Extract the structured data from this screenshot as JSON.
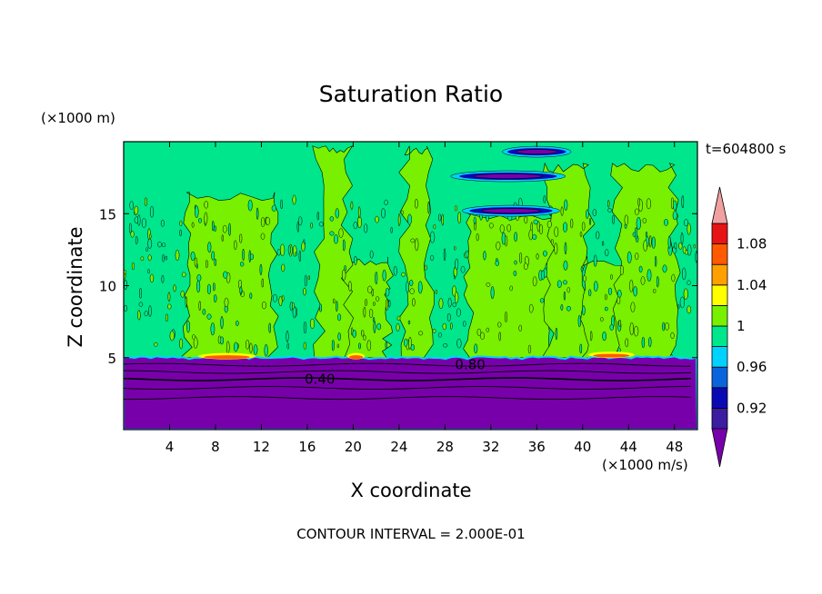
{
  "chart_data": {
    "type": "heatmap",
    "title": "Saturation Ratio",
    "xlabel": "X coordinate",
    "ylabel": "Z coordinate",
    "x_unit": "(×1000 m/s)",
    "y_unit": "(×1000 m)",
    "time_label": "t=604800 s",
    "footer": "CONTOUR INTERVAL = 2.000E-01",
    "xlim": [
      0,
      50
    ],
    "ylim": [
      0,
      20
    ],
    "xticks": [
      4,
      8,
      12,
      16,
      20,
      24,
      28,
      32,
      36,
      40,
      44,
      48
    ],
    "yticks": [
      5,
      10,
      15
    ],
    "contour_labels": [
      {
        "text": "0.80",
        "x": 30.2,
        "y": 4.5
      },
      {
        "text": "0.40",
        "x": 17.1,
        "y": 3.5
      }
    ],
    "colorbar": {
      "levels": [
        0.9,
        0.92,
        0.94,
        0.96,
        0.98,
        1.0,
        1.02,
        1.04,
        1.06,
        1.08,
        1.1
      ],
      "colors": [
        "#3c1ca0",
        "#0a0ab4",
        "#0a64dc",
        "#00d2ff",
        "#00e68c",
        "#78f000",
        "#ffff00",
        "#ffa000",
        "#ff5a00",
        "#e61414"
      ],
      "under_color": "#7800aa",
      "over_color": "#f0a0a0",
      "tick_labels": [
        {
          "text": "0.92",
          "value": 0.92
        },
        {
          "text": "0.96",
          "value": 0.96
        },
        {
          "text": "1",
          "value": 1.0
        },
        {
          "text": "1.04",
          "value": 1.04
        },
        {
          "text": "1.08",
          "value": 1.08
        }
      ]
    },
    "regions": {
      "lower_layer_top_km": 5.0,
      "lower_layer_color": "#7800aa",
      "background_color": "#00e68c",
      "plume_color": "#78f000",
      "plumes": [
        {
          "x0": 5.5,
          "x1": 13.0,
          "top": 16.5
        },
        {
          "x0": 19.0,
          "x1": 23.0,
          "top": 12.0
        },
        {
          "x0": 17.0,
          "x1": 19.5,
          "top": 19.7
        },
        {
          "x0": 24.5,
          "x1": 26.5,
          "top": 19.7
        },
        {
          "x0": 30.0,
          "x1": 37.5,
          "top": 15.0
        },
        {
          "x0": 37.0,
          "x1": 40.5,
          "top": 18.5
        },
        {
          "x0": 40.0,
          "x1": 47.5,
          "top": 12.0
        },
        {
          "x0": 43.0,
          "x1": 48.0,
          "top": 18.5
        }
      ],
      "dry_streaks": [
        {
          "x0": 28.5,
          "x1": 38.5,
          "y": 17.6
        },
        {
          "x0": 29.5,
          "x1": 38.0,
          "y": 15.2
        },
        {
          "x0": 33.0,
          "x1": 39.0,
          "y": 19.3
        }
      ],
      "warm_patches": [
        {
          "x0": 6.5,
          "x1": 11.5,
          "y": 5.1
        },
        {
          "x0": 19.5,
          "x1": 21.0,
          "y": 5.1
        },
        {
          "x0": 40.5,
          "x1": 44.5,
          "y": 5.2
        }
      ]
    }
  }
}
